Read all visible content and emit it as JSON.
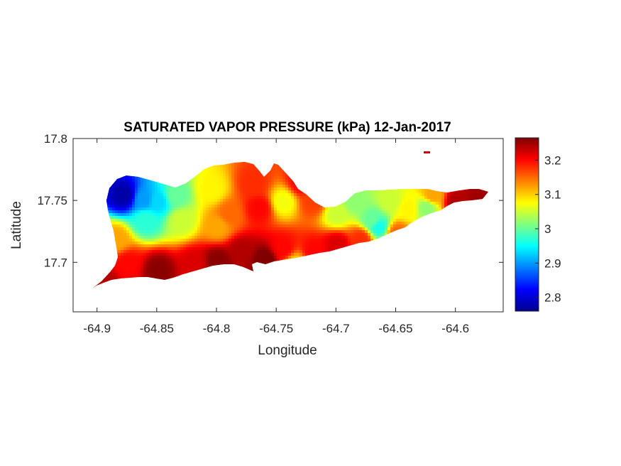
{
  "chart_data": {
    "type": "heatmap",
    "title": "SATURATED VAPOR PRESSURE (kPa) 12-Jan-2017",
    "xlabel": "Longitude",
    "ylabel": "Latitude",
    "xlim": [
      -64.92,
      -64.56
    ],
    "ylim": [
      17.66,
      17.8
    ],
    "x_ticks": [
      "-64.9",
      "-64.85",
      "-64.8",
      "-64.75",
      "-64.7",
      "-64.65",
      "-64.6"
    ],
    "y_ticks": [
      "17.8",
      "17.75",
      "17.7"
    ],
    "colorbar": {
      "colormap": "jet",
      "range": [
        2.76,
        3.265
      ],
      "ticks": [
        "3.2",
        "3.1",
        "3",
        "2.9",
        "2.8"
      ]
    },
    "grid": false,
    "field_points": [
      {
        "lon": -64.878,
        "lat": 17.755,
        "value": 2.78
      },
      {
        "lon": -64.862,
        "lat": 17.752,
        "value": 2.9
      },
      {
        "lon": -64.85,
        "lat": 17.75,
        "value": 2.93
      },
      {
        "lon": -64.86,
        "lat": 17.735,
        "value": 2.97
      },
      {
        "lon": -64.835,
        "lat": 17.755,
        "value": 3.0
      },
      {
        "lon": -64.83,
        "lat": 17.735,
        "value": 3.05
      },
      {
        "lon": -64.885,
        "lat": 17.72,
        "value": 3.12
      },
      {
        "lon": -64.875,
        "lat": 17.7,
        "value": 3.2
      },
      {
        "lon": -64.895,
        "lat": 17.685,
        "value": 3.24
      },
      {
        "lon": -64.85,
        "lat": 17.695,
        "value": 3.26
      },
      {
        "lon": -64.82,
        "lat": 17.7,
        "value": 3.22
      },
      {
        "lon": -64.8,
        "lat": 17.702,
        "value": 3.26
      },
      {
        "lon": -64.78,
        "lat": 17.71,
        "value": 3.24
      },
      {
        "lon": -64.76,
        "lat": 17.703,
        "value": 3.27
      },
      {
        "lon": -64.745,
        "lat": 17.712,
        "value": 3.2
      },
      {
        "lon": -64.735,
        "lat": 17.7,
        "value": 3.1
      },
      {
        "lon": -64.72,
        "lat": 17.71,
        "value": 3.2
      },
      {
        "lon": -64.7,
        "lat": 17.715,
        "value": 3.22
      },
      {
        "lon": -64.8,
        "lat": 17.73,
        "value": 3.12
      },
      {
        "lon": -64.805,
        "lat": 17.76,
        "value": 3.08
      },
      {
        "lon": -64.79,
        "lat": 17.74,
        "value": 3.15
      },
      {
        "lon": -64.77,
        "lat": 17.765,
        "value": 3.18
      },
      {
        "lon": -64.765,
        "lat": 17.745,
        "value": 3.2
      },
      {
        "lon": -64.745,
        "lat": 17.75,
        "value": 3.07
      },
      {
        "lon": -64.73,
        "lat": 17.765,
        "value": 3.2
      },
      {
        "lon": -64.72,
        "lat": 17.75,
        "value": 3.17
      },
      {
        "lon": -64.7,
        "lat": 17.74,
        "value": 3.05
      },
      {
        "lon": -64.685,
        "lat": 17.75,
        "value": 3.02
      },
      {
        "lon": -64.67,
        "lat": 17.735,
        "value": 3.0
      },
      {
        "lon": -64.665,
        "lat": 17.73,
        "value": 2.96
      },
      {
        "lon": -64.655,
        "lat": 17.75,
        "value": 3.05
      },
      {
        "lon": -64.64,
        "lat": 17.745,
        "value": 3.08
      },
      {
        "lon": -64.625,
        "lat": 17.745,
        "value": 3.02
      },
      {
        "lon": -64.62,
        "lat": 17.755,
        "value": 3.12
      },
      {
        "lon": -64.6,
        "lat": 17.75,
        "value": 3.24
      },
      {
        "lon": -64.58,
        "lat": 17.753,
        "value": 3.25
      },
      {
        "lon": -64.68,
        "lat": 17.72,
        "value": 3.18
      },
      {
        "lon": -64.65,
        "lat": 17.725,
        "value": 3.15
      }
    ]
  }
}
